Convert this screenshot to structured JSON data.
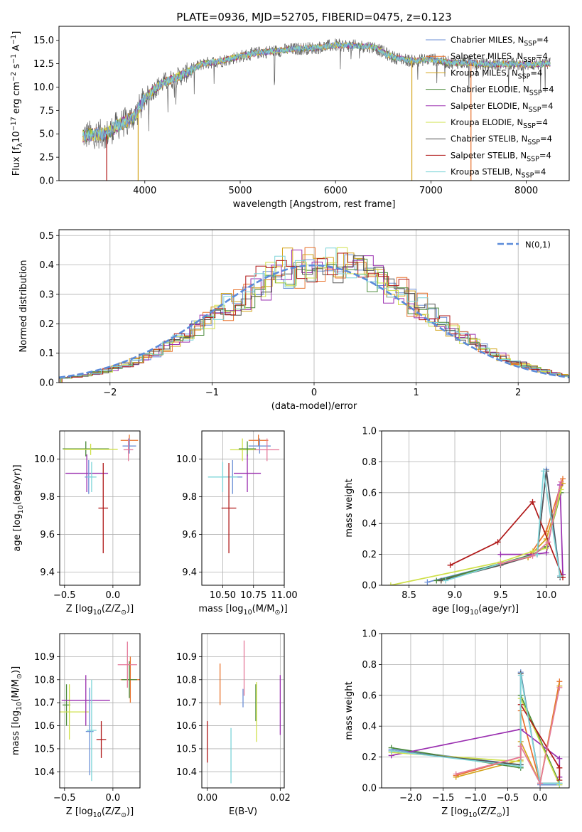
{
  "colors": {
    "chabrier_miles": "#6b8fd6",
    "salpeter_miles": "#e8722c",
    "kroupa_miles": "#d3a41a",
    "chabrier_elodie": "#4a8a3a",
    "salpeter_elodie": "#9a2fb0",
    "kroupa_elodie": "#cfe04a",
    "chabrier_stelib": "#555555",
    "salpeter_stelib": "#b01818",
    "kroupa_stelib": "#7dd4d8",
    "pink": "#e57a9a",
    "normal": "#5b8bd9"
  },
  "chart_data": [
    {
      "id": "spectrum",
      "type": "line",
      "title": "PLATE=0936, MJD=52705, FIBERID=0475, z=0.123",
      "xlabel": "wavelength [Angstrom, rest frame]",
      "ylabel": "Flux [f$_\\lambda$10$^{-17}$ erg cm$^{-2}$ s$^{-1}$ A$^{-1}$]",
      "xlim": [
        3100,
        8450
      ],
      "ylim": [
        0,
        16.5
      ],
      "xticks": [
        4000,
        5000,
        6000,
        7000,
        8000
      ],
      "yticks": [
        0.0,
        2.5,
        5.0,
        7.5,
        10.0,
        12.5,
        15.0
      ],
      "legend": "top-right",
      "series": [
        {
          "name": "Chabrier MILES, N$_{SSP}$=4",
          "color": "chabrier_miles"
        },
        {
          "name": "Salpeter MILES, N$_{SSP}$=4",
          "color": "salpeter_miles"
        },
        {
          "name": "Kroupa MILES, N$_{SSP}$=4",
          "color": "kroupa_miles"
        },
        {
          "name": "Chabrier ELODIE, N$_{SSP}$=4",
          "color": "chabrier_elodie"
        },
        {
          "name": "Salpeter ELODIE, N$_{SSP}$=4",
          "color": "salpeter_elodie"
        },
        {
          "name": "Kroupa ELODIE, N$_{SSP}$=4",
          "color": "kroupa_elodie"
        },
        {
          "name": "Chabrier STELIB, N$_{SSP}$=4",
          "color": "chabrier_stelib"
        },
        {
          "name": "Salpeter STELIB, N$_{SSP}$=4",
          "color": "salpeter_stelib"
        },
        {
          "name": "Kroupa STELIB, N$_{SSP}$=4",
          "color": "kroupa_stelib"
        }
      ],
      "continuum": {
        "x": [
          3350,
          3500,
          3600,
          3700,
          3800,
          3900,
          4000,
          4100,
          4200,
          4400,
          4600,
          4800,
          5000,
          5200,
          5400,
          5600,
          5800,
          6000,
          6200,
          6400,
          6600,
          6800,
          7000,
          7200,
          7400,
          7600,
          7800,
          8000,
          8200
        ],
        "y": [
          4.8,
          5.0,
          5.0,
          5.8,
          6.3,
          7.0,
          8.8,
          9.8,
          10.5,
          11.3,
          12.5,
          12.8,
          13.3,
          13.7,
          13.9,
          14.1,
          14.2,
          14.5,
          14.4,
          14.3,
          13.2,
          12.8,
          13.0,
          12.6,
          12.6,
          12.4,
          12.5,
          12.4,
          12.5
        ]
      },
      "dips": [
        {
          "x": 3600,
          "color": "salpeter_stelib"
        },
        {
          "x": 3930,
          "color": "kroupa_miles"
        },
        {
          "x": 6800,
          "color": "kroupa_miles"
        },
        {
          "x": 7420,
          "color": "salpeter_miles"
        }
      ]
    },
    {
      "id": "residuals",
      "type": "line",
      "xlabel": "(data-model)/error",
      "ylabel": "Normed distribution",
      "xlim": [
        -2.5,
        2.5
      ],
      "ylim": [
        0,
        0.52
      ],
      "xticks": [
        -2,
        -1,
        0,
        1,
        2
      ],
      "yticks": [
        0.0,
        0.1,
        0.2,
        0.3,
        0.4,
        0.5
      ],
      "legend": "top-right",
      "normal_label": "$\\mathcal{N}(0,1)$",
      "bin_width": 0.1,
      "bin_start": -2.5,
      "histograms": [
        {
          "color": "chabrier_miles",
          "shift": 0.0
        },
        {
          "color": "salpeter_miles",
          "shift": 0.01
        },
        {
          "color": "kroupa_miles",
          "shift": -0.01
        },
        {
          "color": "chabrier_elodie",
          "shift": 0.02
        },
        {
          "color": "salpeter_elodie",
          "shift": -0.02
        },
        {
          "color": "kroupa_elodie",
          "shift": 0.025
        },
        {
          "color": "chabrier_stelib",
          "shift": -0.015
        },
        {
          "color": "salpeter_stelib",
          "shift": 0.03
        },
        {
          "color": "kroupa_stelib",
          "shift": 0.015
        }
      ]
    },
    {
      "id": "age_vs_z",
      "type": "scatter",
      "xlabel": "Z [log$_{10}$(Z/Z$_\\odot$)]",
      "ylabel": "age  [log$_{10}$(age/yr)]",
      "xlim": [
        -0.55,
        0.28
      ],
      "ylim": [
        9.33,
        10.15
      ],
      "xticks": [
        -0.5,
        0.0
      ],
      "yticks": [
        9.4,
        9.6,
        9.8,
        10.0
      ],
      "points": [
        {
          "x": -0.28,
          "y": 10.055,
          "xerr": 0.24,
          "yerr": 0.04,
          "color": "chabrier_elodie"
        },
        {
          "x": -0.23,
          "y": 10.052,
          "xerr": 0.28,
          "yerr": 0.03,
          "color": "kroupa_elodie"
        },
        {
          "x": -0.27,
          "y": 9.925,
          "xerr": 0.22,
          "yerr": 0.1,
          "color": "salpeter_elodie"
        },
        {
          "x": -0.25,
          "y": 9.905,
          "xerr": 0.04,
          "yerr": 0.09,
          "color": "chabrier_miles"
        },
        {
          "x": -0.22,
          "y": 9.905,
          "xerr": 0.05,
          "yerr": 0.08,
          "color": "kroupa_stelib"
        },
        {
          "x": -0.1,
          "y": 9.74,
          "xerr": 0.05,
          "yerr": 0.24,
          "color": "salpeter_stelib"
        },
        {
          "x": 0.17,
          "y": 10.1,
          "xerr": 0.09,
          "yerr": 0.03,
          "color": "salpeter_miles"
        },
        {
          "x": 0.17,
          "y": 10.07,
          "xerr": 0.07,
          "yerr": 0.04,
          "color": "chabrier_miles"
        },
        {
          "x": 0.16,
          "y": 10.05,
          "xerr": 0.05,
          "yerr": 0.06,
          "color": "pink"
        }
      ]
    },
    {
      "id": "age_vs_mass",
      "type": "scatter",
      "xlabel": "mass [log$_{10}$(M/M$_\\odot$)]",
      "ylabel": "",
      "xlim": [
        10.33,
        11.0
      ],
      "ylim": [
        9.33,
        10.15
      ],
      "xticks": [
        10.5,
        10.75,
        11.0
      ],
      "xticklabels": [
        "10.50",
        "10.75",
        "11.00"
      ],
      "yticks": [
        9.4,
        9.6,
        9.8,
        10.0
      ],
      "points": [
        {
          "x": 10.79,
          "y": 10.1,
          "xerr": 0.08,
          "yerr": 0.03,
          "color": "salpeter_miles"
        },
        {
          "x": 10.8,
          "y": 10.07,
          "xerr": 0.09,
          "yerr": 0.04,
          "color": "chabrier_miles"
        },
        {
          "x": 10.86,
          "y": 10.05,
          "xerr": 0.1,
          "yerr": 0.06,
          "color": "pink"
        },
        {
          "x": 10.66,
          "y": 10.05,
          "xerr": 0.1,
          "yerr": 0.06,
          "color": "kroupa_elodie"
        },
        {
          "x": 10.7,
          "y": 10.055,
          "xerr": 0.07,
          "yerr": 0.04,
          "color": "chabrier_elodie"
        },
        {
          "x": 10.7,
          "y": 9.925,
          "xerr": 0.11,
          "yerr": 0.1,
          "color": "salpeter_elodie"
        },
        {
          "x": 10.58,
          "y": 9.905,
          "xerr": 0.08,
          "yerr": 0.09,
          "color": "chabrier_miles"
        },
        {
          "x": 10.5,
          "y": 9.905,
          "xerr": 0.12,
          "yerr": 0.08,
          "color": "kroupa_stelib"
        },
        {
          "x": 10.55,
          "y": 9.74,
          "xerr": 0.06,
          "yerr": 0.24,
          "color": "salpeter_stelib"
        }
      ]
    },
    {
      "id": "mass_weight_vs_age",
      "type": "line",
      "xlabel": "age  [log$_{10}$(age/yr)]",
      "ylabel": "mass weight",
      "xlim": [
        8.2,
        10.25
      ],
      "ylim": [
        0,
        1.0
      ],
      "xticks": [
        8.5,
        9.0,
        9.5,
        10.0
      ],
      "yticks": [
        0.0,
        0.2,
        0.4,
        0.6,
        0.8,
        1.0
      ],
      "series": [
        {
          "color": "chabrier_miles",
          "x": [
            8.7,
            9.5,
            9.9,
            10.0,
            10.15
          ],
          "y": [
            0.02,
            0.14,
            0.2,
            0.75,
            0.06
          ]
        },
        {
          "color": "salpeter_miles",
          "x": [
            8.85,
            9.5,
            9.8,
            10.0,
            10.18
          ],
          "y": [
            0.03,
            0.14,
            0.18,
            0.35,
            0.69
          ]
        },
        {
          "color": "kroupa_miles",
          "x": [
            8.85,
            9.5,
            9.8,
            10.0,
            10.18
          ],
          "y": [
            0.03,
            0.14,
            0.18,
            0.3,
            0.66
          ]
        },
        {
          "color": "chabrier_elodie",
          "x": [
            8.8,
            9.5,
            9.85,
            10.0,
            10.16
          ],
          "y": [
            0.03,
            0.14,
            0.2,
            0.25,
            0.6
          ]
        },
        {
          "color": "salpeter_elodie",
          "x": [
            9.5,
            9.85,
            10.0,
            10.15,
            10.18
          ],
          "y": [
            0.2,
            0.2,
            0.21,
            0.65,
            0.07
          ]
        },
        {
          "color": "kroupa_elodie",
          "x": [
            8.3,
            9.5,
            9.85,
            10.0,
            10.16
          ],
          "y": [
            0.0,
            0.15,
            0.22,
            0.24,
            0.62
          ]
        },
        {
          "color": "chabrier_stelib",
          "x": [
            8.85,
            9.5,
            9.9,
            10.0,
            10.15
          ],
          "y": [
            0.03,
            0.13,
            0.2,
            0.74,
            0.05
          ]
        },
        {
          "color": "salpeter_stelib",
          "x": [
            8.95,
            9.47,
            9.85,
            10.18
          ],
          "y": [
            0.13,
            0.28,
            0.54,
            0.05
          ]
        },
        {
          "color": "kroupa_stelib",
          "x": [
            8.9,
            9.5,
            9.9,
            9.97,
            10.15
          ],
          "y": [
            0.03,
            0.14,
            0.2,
            0.74,
            0.06
          ]
        },
        {
          "color": "pink",
          "x": [
            9.5,
            9.85,
            10.02,
            10.16
          ],
          "y": [
            0.14,
            0.19,
            0.28,
            0.67
          ]
        }
      ]
    },
    {
      "id": "mass_vs_z",
      "type": "scatter",
      "xlabel": "Z [log$_{10}$(Z/Z$_\\odot$)]",
      "ylabel": "mass [log$_{10}$(M/M$_\\odot$)]",
      "xlim": [
        -0.55,
        0.28
      ],
      "ylim": [
        10.33,
        11.0
      ],
      "xticks": [
        -0.5,
        0.0
      ],
      "yticks": [
        10.4,
        10.5,
        10.6,
        10.7,
        10.8,
        10.9
      ],
      "points": [
        {
          "x": -0.48,
          "y": 10.69,
          "xerr": 0.04,
          "yerr": 0.09,
          "color": "chabrier_elodie"
        },
        {
          "x": -0.45,
          "y": 10.66,
          "xerr": 0.2,
          "yerr": 0.12,
          "color": "kroupa_elodie"
        },
        {
          "x": -0.28,
          "y": 10.71,
          "xerr": 0.25,
          "yerr": 0.11,
          "color": "salpeter_elodie"
        },
        {
          "x": -0.24,
          "y": 10.575,
          "xerr": 0.04,
          "yerr": 0.19,
          "color": "chabrier_miles"
        },
        {
          "x": -0.22,
          "y": 10.58,
          "xerr": 0.05,
          "yerr": 0.22,
          "color": "kroupa_stelib"
        },
        {
          "x": -0.12,
          "y": 10.54,
          "xerr": 0.05,
          "yerr": 0.08,
          "color": "salpeter_stelib"
        },
        {
          "x": 0.18,
          "y": 10.8,
          "xerr": 0.1,
          "yerr": 0.1,
          "color": "salpeter_miles"
        },
        {
          "x": 0.17,
          "y": 10.8,
          "xerr": 0.08,
          "yerr": 0.08,
          "color": "chabrier_elodie"
        },
        {
          "x": 0.15,
          "y": 10.865,
          "xerr": 0.1,
          "yerr": 0.1,
          "color": "pink"
        }
      ]
    },
    {
      "id": "mass_vs_ebv",
      "type": "scatter",
      "xlabel": "E(B-V)",
      "ylabel": "",
      "xlim": [
        -0.0015,
        0.0211
      ],
      "ylim": [
        10.33,
        11.0
      ],
      "xticks": [
        0.0,
        0.02
      ],
      "xticklabels": [
        "0.00",
        "0.02"
      ],
      "yticks": [
        10.4,
        10.5,
        10.6,
        10.7,
        10.8,
        10.9
      ],
      "points": [
        {
          "x": 0.0,
          "y": 10.53,
          "xerr": 0,
          "yerr": 0.09,
          "color": "salpeter_stelib"
        },
        {
          "x": 0.0035,
          "y": 10.78,
          "xerr": 0,
          "yerr": 0.09,
          "color": "salpeter_miles"
        },
        {
          "x": 0.0065,
          "y": 10.47,
          "xerr": 0,
          "yerr": 0.12,
          "color": "kroupa_stelib"
        },
        {
          "x": 0.0098,
          "y": 10.72,
          "xerr": 0,
          "yerr": 0.04,
          "color": "chabrier_miles"
        },
        {
          "x": 0.0101,
          "y": 10.85,
          "xerr": 0,
          "yerr": 0.12,
          "color": "pink"
        },
        {
          "x": 0.0133,
          "y": 10.7,
          "xerr": 0,
          "yerr": 0.08,
          "color": "chabrier_elodie"
        },
        {
          "x": 0.0135,
          "y": 10.66,
          "xerr": 0,
          "yerr": 0.13,
          "color": "kroupa_elodie"
        },
        {
          "x": 0.02,
          "y": 10.69,
          "xerr": 0,
          "yerr": 0.13,
          "color": "salpeter_elodie"
        }
      ]
    },
    {
      "id": "mass_weight_vs_z",
      "type": "line",
      "xlabel": "Z [log$_{10}$(Z/Z$_\\odot$)]",
      "ylabel": "mass weight",
      "xlim": [
        -2.45,
        0.45
      ],
      "ylim": [
        0,
        1.0
      ],
      "xticks": [
        -2.0,
        -1.5,
        -1.0,
        -0.5,
        0.0
      ],
      "yticks": [
        0.0,
        0.2,
        0.4,
        0.6,
        0.8,
        1.0
      ],
      "series": [
        {
          "color": "chabrier_miles",
          "x": [
            -2.3,
            -0.3,
            -0.3,
            0.0,
            0.3
          ],
          "y": [
            0.25,
            0.15,
            0.75,
            0.02,
            0.02
          ]
        },
        {
          "color": "salpeter_miles",
          "x": [
            -1.3,
            -0.3,
            -0.3,
            0.0,
            0.3
          ],
          "y": [
            0.08,
            0.2,
            0.5,
            0.03,
            0.69
          ]
        },
        {
          "color": "kroupa_miles",
          "x": [
            -1.3,
            -0.3,
            -0.3,
            0.0,
            0.3
          ],
          "y": [
            0.07,
            0.18,
            0.3,
            0.03,
            0.66
          ]
        },
        {
          "color": "chabrier_elodie",
          "x": [
            -2.3,
            -0.3,
            -0.3,
            0.3
          ],
          "y": [
            0.26,
            0.13,
            0.6,
            0.03
          ]
        },
        {
          "color": "salpeter_elodie",
          "x": [
            -2.3,
            -0.3,
            0.3,
            0.3
          ],
          "y": [
            0.21,
            0.38,
            0.19,
            0.07
          ]
        },
        {
          "color": "kroupa_elodie",
          "x": [
            -2.3,
            -0.3,
            -0.3,
            0.3
          ],
          "y": [
            0.23,
            0.17,
            0.58,
            0.02
          ]
        },
        {
          "color": "chabrier_stelib",
          "x": [
            -2.3,
            -0.3,
            -0.3,
            0.0,
            0.3
          ],
          "y": [
            0.24,
            0.15,
            0.74,
            0.03,
            0.03
          ]
        },
        {
          "color": "salpeter_stelib",
          "x": [
            -0.3,
            0.3,
            0.3
          ],
          "y": [
            0.54,
            0.13,
            0.05
          ]
        },
        {
          "color": "kroupa_stelib",
          "x": [
            -2.3,
            -0.3,
            -0.3,
            0.0,
            0.3
          ],
          "y": [
            0.24,
            0.14,
            0.73,
            0.03,
            0.03
          ]
        },
        {
          "color": "pink",
          "x": [
            -1.3,
            -0.3,
            -0.3,
            0.0,
            0.3
          ],
          "y": [
            0.09,
            0.2,
            0.27,
            0.03,
            0.65
          ]
        }
      ]
    }
  ]
}
